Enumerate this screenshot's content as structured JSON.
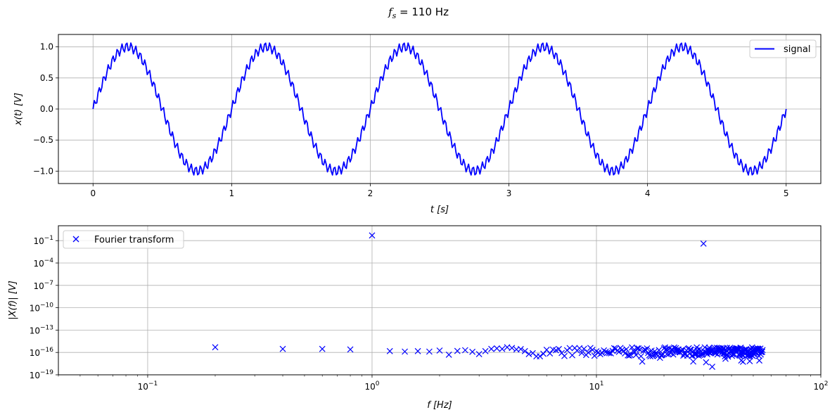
{
  "figure": {
    "suptitle_var": "f",
    "suptitle_sub": "s",
    "suptitle_rest": " = 110 Hz"
  },
  "chart_data": [
    {
      "type": "line",
      "title": "",
      "xlabel": "t [s]",
      "ylabel": "x(t) [V]",
      "xlim": [
        -0.25,
        5.25
      ],
      "ylim": [
        -1.2,
        1.2
      ],
      "xticks": [
        0,
        1,
        2,
        3,
        4,
        5
      ],
      "xtick_labels": [
        "0",
        "1",
        "2",
        "3",
        "4",
        "5"
      ],
      "yticks": [
        -1.0,
        -0.5,
        0.0,
        0.5,
        1.0
      ],
      "ytick_labels": [
        "−1.0",
        "−0.5",
        "0.0",
        "0.5",
        "1.0"
      ],
      "grid": true,
      "legend": {
        "position": "upper right",
        "entries": [
          "signal"
        ]
      },
      "series": [
        {
          "name": "signal",
          "color": "#0000ff",
          "description": "x(t) = sin(2π·1·t) + 0.08·sin(2π·30·t), sampled at fs = 110 Hz for t in [0, 5)",
          "components": [
            {
              "freq_hz": 1,
              "amplitude": 1.0
            },
            {
              "freq_hz": 30,
              "amplitude": 0.08
            }
          ],
          "fs": 110,
          "t_start": 0,
          "t_end": 5
        }
      ]
    },
    {
      "type": "scatter",
      "title": "",
      "xlabel": "f [Hz]",
      "ylabel": "|X(f)| [V]",
      "xscale": "log",
      "yscale": "log",
      "xlim": [
        0.04,
        100
      ],
      "ylim": [
        1e-19,
        10.0
      ],
      "xticks": [
        0.1,
        1,
        10,
        100
      ],
      "xtick_labels": [
        [
          "10",
          "−1"
        ],
        [
          "10",
          "0"
        ],
        [
          "10",
          "1"
        ],
        [
          "10",
          "2"
        ]
      ],
      "yticks": [
        1e-19,
        1e-16,
        1e-13,
        1e-10,
        1e-07,
        0.0001,
        0.1
      ],
      "ytick_labels": [
        [
          "10",
          "−19"
        ],
        [
          "10",
          "−16"
        ],
        [
          "10",
          "−13"
        ],
        [
          "10",
          "−10"
        ],
        [
          "10",
          "−7"
        ],
        [
          "10",
          "−4"
        ],
        [
          "10",
          "−1"
        ]
      ],
      "grid": true,
      "legend": {
        "position": "upper left",
        "entries": [
          "Fourier transform"
        ]
      },
      "series": [
        {
          "name": "Fourier transform",
          "marker": "x",
          "color": "#0000ff",
          "peaks": [
            {
              "f": 1.0,
              "value": 0.5
            },
            {
              "f": 30.0,
              "value": 0.04
            }
          ],
          "low_freq_points": [
            {
              "f": 0.2,
              "value": 5e-16
            },
            {
              "f": 0.4,
              "value": 3e-16
            },
            {
              "f": 0.6,
              "value": 3e-16
            },
            {
              "f": 0.8,
              "value": 2.5e-16
            },
            {
              "f": 1.2,
              "value": 1.5e-16
            },
            {
              "f": 1.4,
              "value": 1.3e-16
            },
            {
              "f": 1.6,
              "value": 1.5e-16
            },
            {
              "f": 1.8,
              "value": 1.3e-16
            },
            {
              "f": 2.0,
              "value": 1.8e-16
            },
            {
              "f": 2.2,
              "value": 5e-17
            },
            {
              "f": 2.4,
              "value": 1.6e-16
            },
            {
              "f": 2.6,
              "value": 2e-16
            },
            {
              "f": 2.8,
              "value": 1.2e-16
            },
            {
              "f": 3.0,
              "value": 6e-17
            },
            {
              "f": 3.2,
              "value": 1.5e-16
            },
            {
              "f": 3.4,
              "value": 3e-16
            },
            {
              "f": 3.6,
              "value": 3.5e-16
            },
            {
              "f": 3.8,
              "value": 3e-16
            },
            {
              "f": 4.0,
              "value": 5e-16
            },
            {
              "f": 4.2,
              "value": 4e-16
            },
            {
              "f": 4.4,
              "value": 2.5e-16
            },
            {
              "f": 4.6,
              "value": 2.8e-16
            },
            {
              "f": 4.8,
              "value": 1.5e-16
            },
            {
              "f": 5.0,
              "value": 6e-17
            },
            {
              "f": 5.2,
              "value": 8e-17
            },
            {
              "f": 5.4,
              "value": 3e-17
            }
          ],
          "noise_floor_band": {
            "f_from": 5.6,
            "f_to": 55,
            "step": 0.2,
            "typical_value": 1.2e-16,
            "min_value": 1e-17
          },
          "outliers": [
            {
              "f": 32.8,
              "value": 1.2e-18
            }
          ]
        }
      ]
    }
  ]
}
